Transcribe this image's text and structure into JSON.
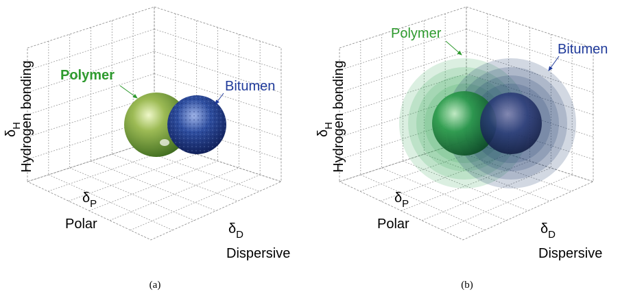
{
  "panels": [
    {
      "label": "(a)",
      "polymer": "Polymer",
      "bitumen": "Bitumen",
      "axes": {
        "h_symbol": "δ",
        "h_sub": "H",
        "h_name": "Hydrogen bonding",
        "p_symbol": "δ",
        "p_sub": "P",
        "p_name": "Polar",
        "d_symbol": "δ",
        "d_sub": "D",
        "d_name": "Dispersive"
      }
    },
    {
      "label": "(b)",
      "polymer": "Polymer",
      "bitumen": "Bitumen",
      "axes": {
        "h_symbol": "δ",
        "h_sub": "H",
        "h_name": "Hydrogen bonding",
        "p_symbol": "δ",
        "p_sub": "P",
        "p_name": "Polar",
        "d_symbol": "δ",
        "d_sub": "D",
        "d_name": "Dispersive"
      }
    }
  ]
}
